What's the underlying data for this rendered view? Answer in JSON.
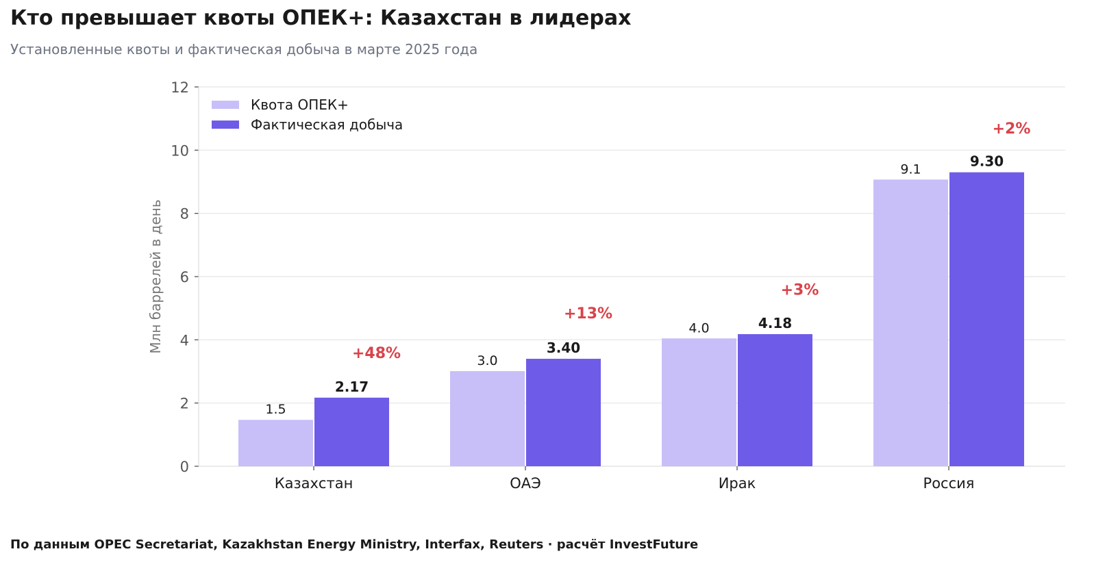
{
  "header": {
    "title": "Кто превышает квоты ОПЕК+: Казахстан в лидерах",
    "subtitle": "Установленные квоты и фактическая добыча в марте 2025 года"
  },
  "footer": {
    "source": "По данным OPEC Secretariat, Kazakhstan Energy Ministry, Interfax, Reuters · расчёт InvestFuture"
  },
  "colors": {
    "quota": "#c8bff8",
    "actual": "#6e5ce8",
    "excess_label": "#d9434a",
    "grid": "#e5e5e5",
    "axis_text": "#555555",
    "value_text": "#1a1a1a"
  },
  "chart_data": {
    "type": "bar",
    "categories": [
      "Казахстан",
      "ОАЭ",
      "Ирак",
      "Россия"
    ],
    "series": [
      {
        "name": "Квота ОПЕК+",
        "values": [
          1.468,
          3.01,
          4.045,
          9.07
        ],
        "labels": [
          "1.5",
          "3.0",
          "4.0",
          "9.1"
        ]
      },
      {
        "name": "Фактическая добыча",
        "values": [
          2.17,
          3.4,
          4.18,
          9.3
        ],
        "labels": [
          "2.17",
          "3.40",
          "4.18",
          "9.30"
        ]
      }
    ],
    "excess_labels": [
      "+48%",
      "+13%",
      "+3%",
      "+2%"
    ],
    "excess_label_y": [
      3.6,
      4.85,
      5.6,
      10.7
    ],
    "ylabel": "Млн баррелей в день",
    "xlabel": "",
    "ylim": [
      0,
      12
    ],
    "yticks": [
      0,
      2,
      4,
      6,
      8,
      10,
      12
    ],
    "grid": true,
    "legend_position": "top-left"
  }
}
